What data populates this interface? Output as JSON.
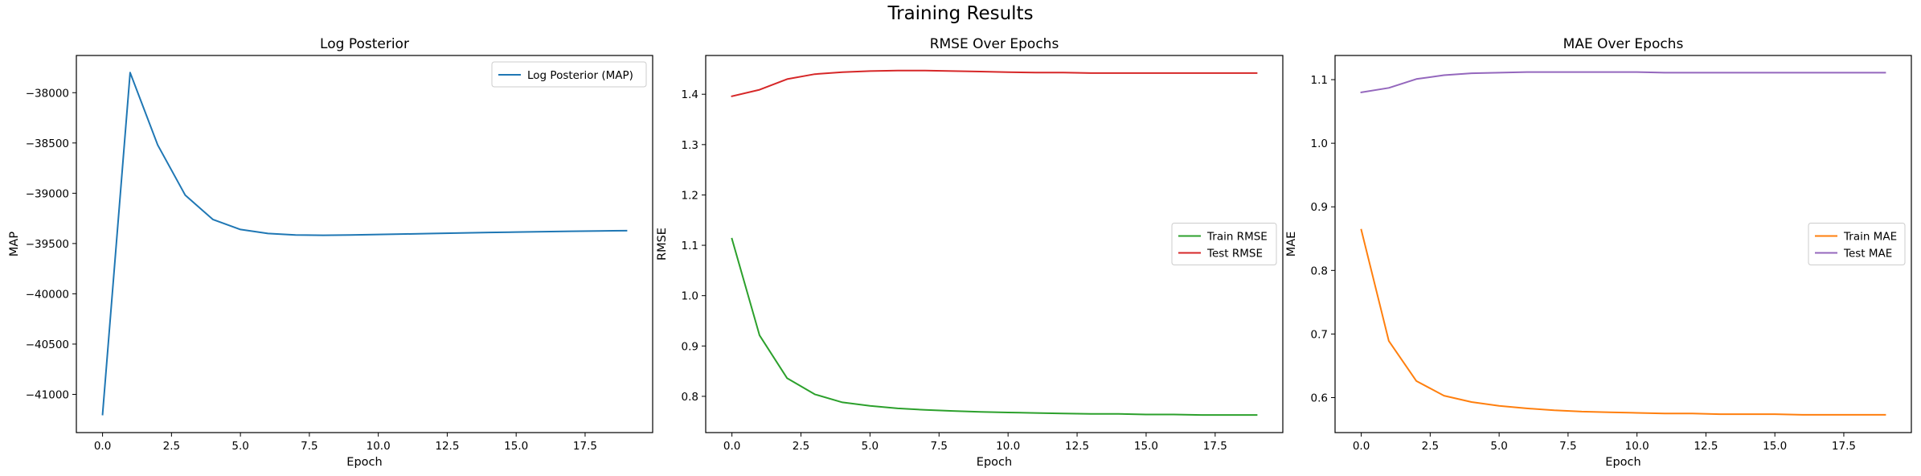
{
  "figure": {
    "title": "Training Results"
  },
  "chart_data": [
    {
      "type": "line",
      "title": "Log Posterior",
      "xlabel": "Epoch",
      "ylabel": "MAP",
      "xlim": [
        -0.95,
        19.95
      ],
      "ylim": [
        -41380,
        -37630
      ],
      "xticks": [
        0.0,
        2.5,
        5.0,
        7.5,
        10.0,
        12.5,
        15.0,
        17.5
      ],
      "xtick_labels": [
        "0.0",
        "2.5",
        "5.0",
        "7.5",
        "10.0",
        "12.5",
        "15.0",
        "17.5"
      ],
      "yticks": [
        -41000,
        -40500,
        -40000,
        -39500,
        -39000,
        -38500,
        -38000
      ],
      "ytick_labels": [
        "−41000",
        "−40500",
        "−40000",
        "−39500",
        "−39000",
        "−38500",
        "−38000"
      ],
      "legend_loc": "upper right",
      "grid": false,
      "x": [
        0,
        1,
        2,
        3,
        4,
        5,
        6,
        7,
        8,
        9,
        10,
        11,
        12,
        13,
        14,
        15,
        16,
        17,
        18,
        19
      ],
      "series": [
        {
          "name": "Log Posterior (MAP)",
          "color": "#1f77b4",
          "values": [
            -41200,
            -37800,
            -38520,
            -39020,
            -39260,
            -39360,
            -39400,
            -39415,
            -39418,
            -39415,
            -39410,
            -39405,
            -39400,
            -39395,
            -39390,
            -39386,
            -39382,
            -39378,
            -39375,
            -39372
          ]
        }
      ]
    },
    {
      "type": "line",
      "title": "RMSE Over Epochs",
      "xlabel": "Epoch",
      "ylabel": "RMSE",
      "xlim": [
        -0.95,
        19.95
      ],
      "ylim": [
        0.728,
        1.477
      ],
      "xticks": [
        0.0,
        2.5,
        5.0,
        7.5,
        10.0,
        12.5,
        15.0,
        17.5
      ],
      "xtick_labels": [
        "0.0",
        "2.5",
        "5.0",
        "7.5",
        "10.0",
        "12.5",
        "15.0",
        "17.5"
      ],
      "yticks": [
        0.8,
        0.9,
        1.0,
        1.1,
        1.2,
        1.3,
        1.4
      ],
      "ytick_labels": [
        "0.8",
        "0.9",
        "1.0",
        "1.1",
        "1.2",
        "1.3",
        "1.4"
      ],
      "legend_loc": "center right",
      "grid": false,
      "x": [
        0,
        1,
        2,
        3,
        4,
        5,
        6,
        7,
        8,
        9,
        10,
        11,
        12,
        13,
        14,
        15,
        16,
        17,
        18,
        19
      ],
      "series": [
        {
          "name": "Train RMSE",
          "color": "#2ca02c",
          "values": [
            1.113,
            0.921,
            0.836,
            0.804,
            0.788,
            0.781,
            0.776,
            0.773,
            0.771,
            0.769,
            0.768,
            0.767,
            0.766,
            0.765,
            0.765,
            0.764,
            0.764,
            0.763,
            0.763,
            0.763
          ]
        },
        {
          "name": "Test RMSE",
          "color": "#d62728",
          "values": [
            1.396,
            1.409,
            1.43,
            1.44,
            1.444,
            1.446,
            1.447,
            1.447,
            1.446,
            1.445,
            1.444,
            1.443,
            1.443,
            1.442,
            1.442,
            1.442,
            1.442,
            1.442,
            1.442,
            1.442
          ]
        }
      ]
    },
    {
      "type": "line",
      "title": "MAE Over Epochs",
      "xlabel": "Epoch",
      "ylabel": "MAE",
      "xlim": [
        -0.95,
        19.95
      ],
      "ylim": [
        0.545,
        1.138
      ],
      "xticks": [
        0.0,
        2.5,
        5.0,
        7.5,
        10.0,
        12.5,
        15.0,
        17.5
      ],
      "xtick_labels": [
        "0.0",
        "2.5",
        "5.0",
        "7.5",
        "10.0",
        "12.5",
        "15.0",
        "17.5"
      ],
      "yticks": [
        0.6,
        0.7,
        0.8,
        0.9,
        1.0,
        1.1
      ],
      "ytick_labels": [
        "0.6",
        "0.7",
        "0.8",
        "0.9",
        "1.0",
        "1.1"
      ],
      "legend_loc": "center right",
      "grid": false,
      "x": [
        0,
        1,
        2,
        3,
        4,
        5,
        6,
        7,
        8,
        9,
        10,
        11,
        12,
        13,
        14,
        15,
        16,
        17,
        18,
        19
      ],
      "series": [
        {
          "name": "Train MAE",
          "color": "#ff7f0e",
          "values": [
            0.864,
            0.689,
            0.626,
            0.603,
            0.593,
            0.587,
            0.583,
            0.58,
            0.578,
            0.577,
            0.576,
            0.575,
            0.575,
            0.574,
            0.574,
            0.574,
            0.573,
            0.573,
            0.573,
            0.573
          ]
        },
        {
          "name": "Test MAE",
          "color": "#9467bd",
          "values": [
            1.08,
            1.087,
            1.101,
            1.107,
            1.11,
            1.111,
            1.112,
            1.112,
            1.112,
            1.112,
            1.112,
            1.111,
            1.111,
            1.111,
            1.111,
            1.111,
            1.111,
            1.111,
            1.111,
            1.111
          ]
        }
      ]
    }
  ]
}
